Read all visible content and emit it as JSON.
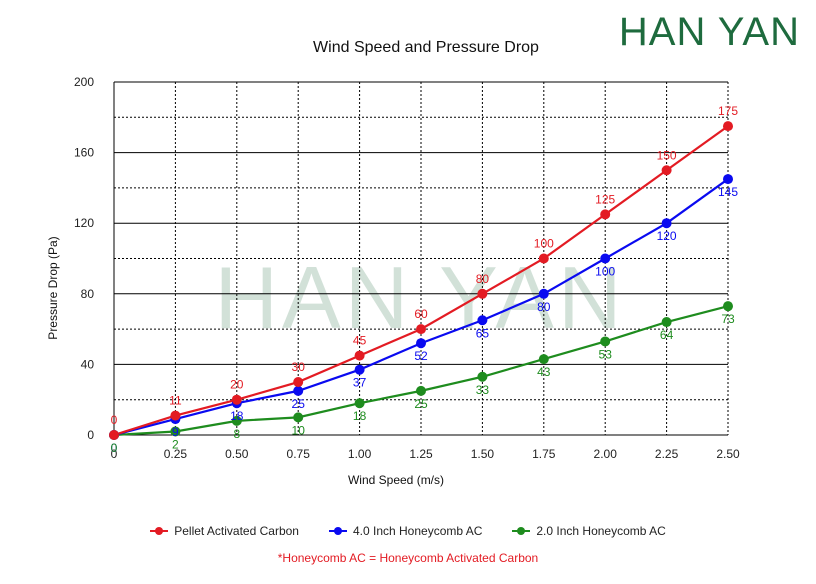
{
  "brand": {
    "logo_text": "HAN YAN",
    "watermark_text": "HAN YAN",
    "color": "#1e6b3e"
  },
  "footnote": "*Honeycomb AC = Honeycomb Activated Carbon",
  "chart_data": {
    "type": "line",
    "title": "Wind Speed and Pressure Drop",
    "xlabel": "Wind Speed (m/s)",
    "ylabel": "Pressure Drop (Pa)",
    "x": [
      0,
      0.25,
      0.5,
      0.75,
      1.0,
      1.25,
      1.5,
      1.75,
      2.0,
      2.25,
      2.5
    ],
    "x_tick_labels": [
      "0",
      "0.25",
      "0.50",
      "0.75",
      "1.00",
      "1.25",
      "1.50",
      "1.75",
      "2.00",
      "2.25",
      "2.50"
    ],
    "xlim": [
      0,
      2.5
    ],
    "ylim": [
      0,
      200
    ],
    "y_ticks": [
      0,
      40,
      80,
      120,
      160,
      200
    ],
    "grid": true,
    "legend_position": "bottom",
    "series": [
      {
        "name": "Pellet Activated Carbon",
        "color": "#e31b23",
        "values": [
          0,
          11,
          20,
          30,
          45,
          60,
          80,
          100,
          125,
          150,
          175
        ],
        "label_position": "above"
      },
      {
        "name": "4.0 Inch Honeycomb AC",
        "color": "#0a0af0",
        "values": [
          0,
          9,
          18,
          25,
          37,
          52,
          65,
          80,
          100,
          120,
          145
        ],
        "label_position": "below"
      },
      {
        "name": "2.0 Inch Honeycomb AC",
        "color": "#1e8c1e",
        "values": [
          0,
          2,
          8,
          10,
          18,
          25,
          33,
          43,
          53,
          64,
          73
        ],
        "label_position": "below"
      }
    ]
  }
}
